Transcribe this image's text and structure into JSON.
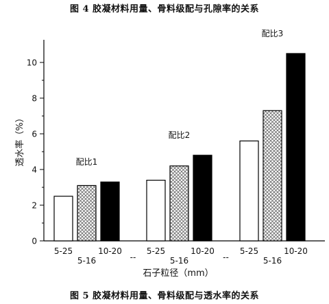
{
  "captions": {
    "top": "图 4 胶凝材料用量、骨料级配与孔隙率的关系",
    "bottom": "图 5 胶凝材料用量、骨料级配与透水率的关系"
  },
  "chart_data": {
    "type": "bar",
    "ylabel": "透水率（%）",
    "xlabel": "石子粒径（mm）",
    "ylim": [
      0,
      11
    ],
    "yticks": [
      0,
      2,
      4,
      6,
      8,
      10
    ],
    "grid": false,
    "groups": [
      {
        "label": "配比1",
        "bars": [
          {
            "size": "5-25",
            "value": 2.5,
            "fill": "white"
          },
          {
            "size": "5-16",
            "value": 3.1,
            "fill": "hatch"
          },
          {
            "size": "10-20",
            "value": 3.3,
            "fill": "black"
          }
        ]
      },
      {
        "label": "配比2",
        "bars": [
          {
            "size": "5-25",
            "value": 3.4,
            "fill": "white"
          },
          {
            "size": "5-16",
            "value": 4.2,
            "fill": "hatch"
          },
          {
            "size": "10-20",
            "value": 4.8,
            "fill": "black"
          }
        ]
      },
      {
        "label": "配比3",
        "bars": [
          {
            "size": "5-25",
            "value": 5.6,
            "fill": "white"
          },
          {
            "size": "5-16",
            "value": 7.3,
            "fill": "hatch"
          },
          {
            "size": "10-20",
            "value": 10.5,
            "fill": "black"
          }
        ]
      }
    ],
    "tick_labels": {
      "upper": [
        "5-25",
        "10-20"
      ],
      "lower": [
        "5-16"
      ],
      "separator": "--"
    },
    "colors": {
      "white": "#ffffff",
      "black": "#000000",
      "outline": "#000000"
    }
  }
}
